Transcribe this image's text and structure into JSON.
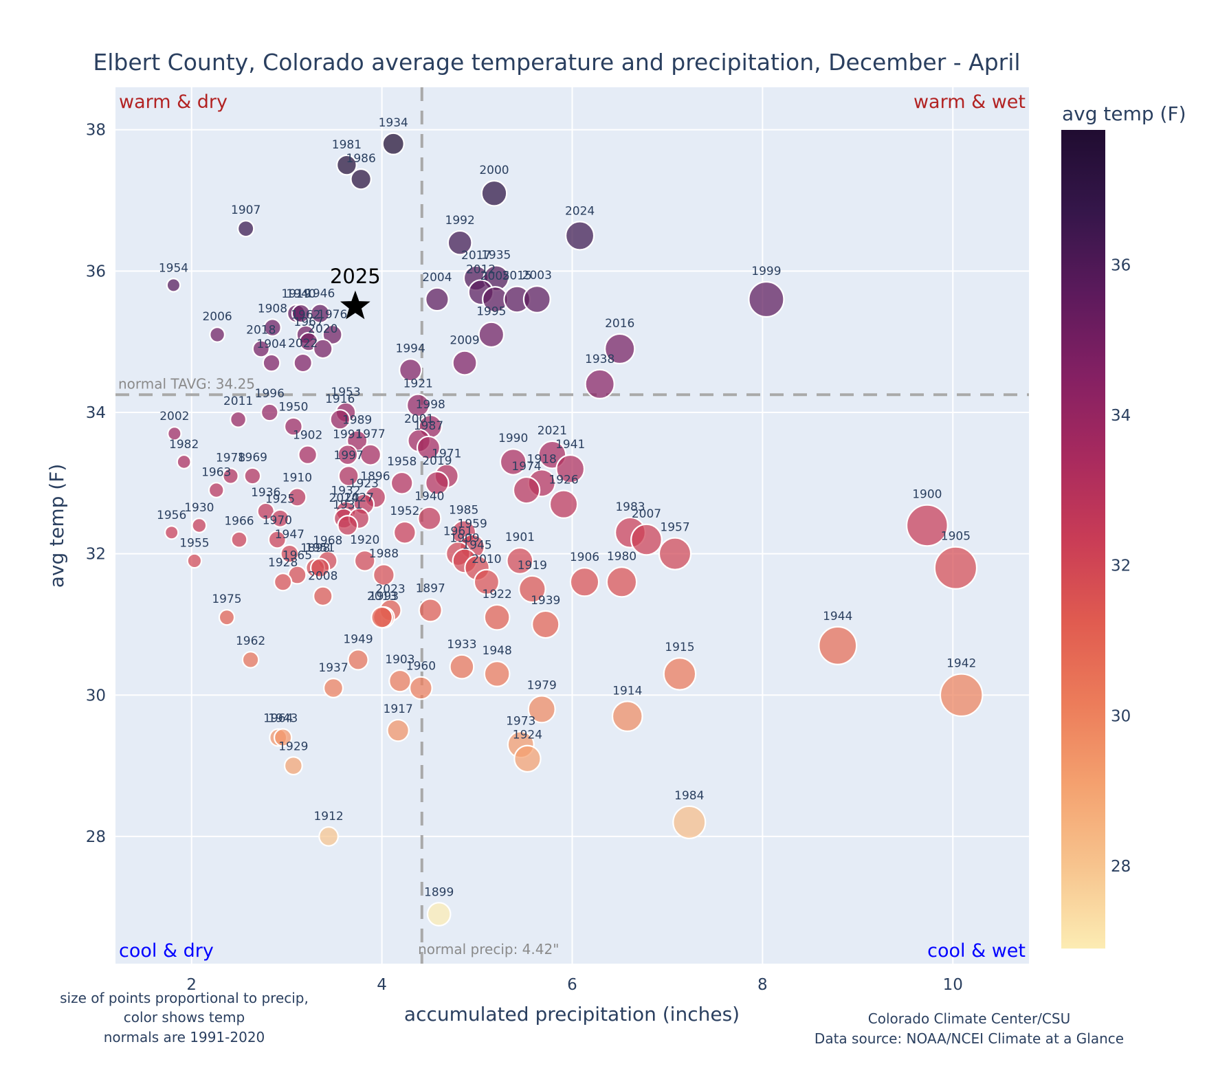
{
  "chart_data": {
    "type": "scatter",
    "title": "Elbert County, Colorado average temperature and precipitation, December - April",
    "xlabel": "accumulated precipitation (inches)",
    "ylabel": "avg temp (F)",
    "xlim": [
      1.2,
      10.8
    ],
    "ylim": [
      26.2,
      38.6
    ],
    "xticks": [
      2,
      4,
      6,
      8,
      10
    ],
    "yticks": [
      28,
      30,
      32,
      34,
      36,
      38
    ],
    "grid": true,
    "colorbar": {
      "title": "avg temp (F)",
      "range": [
        26.9,
        37.8
      ],
      "ticks": [
        28,
        30,
        32,
        34,
        36
      ],
      "colorscale": [
        "#fcecb3",
        "#f7c48e",
        "#f4a16f",
        "#ec7c5a",
        "#e05b50",
        "#c93c56",
        "#a82a5e",
        "#842063",
        "#5c1a5c",
        "#35164a",
        "#200c31"
      ]
    },
    "normals": {
      "precip": 4.42,
      "precip_label": "normal precip: 4.42\"",
      "tavg": 34.25,
      "tavg_label": "normal TAVG: 34.25"
    },
    "quadrants": {
      "warm_dry": "warm & dry",
      "warm_wet": "warm & wet",
      "cool_dry": "cool & dry",
      "cool_wet": "cool & wet"
    },
    "highlight": {
      "year": "2025",
      "precip": 3.72,
      "temp": 35.5
    },
    "points": [
      {
        "year": "1934",
        "precip": 4.12,
        "temp": 37.8
      },
      {
        "year": "1981",
        "precip": 3.63,
        "temp": 37.5
      },
      {
        "year": "1986",
        "precip": 3.78,
        "temp": 37.3
      },
      {
        "year": "2000",
        "precip": 5.18,
        "temp": 37.1
      },
      {
        "year": "1907",
        "precip": 2.57,
        "temp": 36.6
      },
      {
        "year": "2024",
        "precip": 6.08,
        "temp": 36.5
      },
      {
        "year": "1992",
        "precip": 4.82,
        "temp": 36.4
      },
      {
        "year": "1954",
        "precip": 1.81,
        "temp": 35.8
      },
      {
        "year": "2017",
        "precip": 4.99,
        "temp": 35.9
      },
      {
        "year": "1935",
        "precip": 5.2,
        "temp": 35.9
      },
      {
        "year": "2012",
        "precip": 5.04,
        "temp": 35.7
      },
      {
        "year": "2005",
        "precip": 5.19,
        "temp": 35.6
      },
      {
        "year": "2015",
        "precip": 5.42,
        "temp": 35.6
      },
      {
        "year": "2003",
        "precip": 5.63,
        "temp": 35.6
      },
      {
        "year": "2004",
        "precip": 4.58,
        "temp": 35.6
      },
      {
        "year": "1999",
        "precip": 8.04,
        "temp": 35.6
      },
      {
        "year": "1919",
        "precip": 3.1,
        "temp": 35.4
      },
      {
        "year": "1940",
        "precip": 3.15,
        "temp": 35.4
      },
      {
        "year": "1946",
        "precip": 3.35,
        "temp": 35.4
      },
      {
        "year": "1908",
        "precip": 2.85,
        "temp": 35.2
      },
      {
        "year": "1962",
        "precip": 3.2,
        "temp": 35.1
      },
      {
        "year": "1967",
        "precip": 3.23,
        "temp": 35.0
      },
      {
        "year": "1976",
        "precip": 3.48,
        "temp": 35.1
      },
      {
        "year": "2006",
        "precip": 2.27,
        "temp": 35.1
      },
      {
        "year": "1995",
        "precip": 5.15,
        "temp": 35.1
      },
      {
        "year": "2018",
        "precip": 2.73,
        "temp": 34.9
      },
      {
        "year": "2020",
        "precip": 3.38,
        "temp": 34.9
      },
      {
        "year": "2016",
        "precip": 6.5,
        "temp": 34.9
      },
      {
        "year": "1904",
        "precip": 2.84,
        "temp": 34.7
      },
      {
        "year": "2022",
        "precip": 3.17,
        "temp": 34.7
      },
      {
        "year": "2009",
        "precip": 4.87,
        "temp": 34.7
      },
      {
        "year": "1994",
        "precip": 4.3,
        "temp": 34.6
      },
      {
        "year": "1938",
        "precip": 6.29,
        "temp": 34.4
      },
      {
        "year": "1921",
        "precip": 4.38,
        "temp": 34.1
      },
      {
        "year": "1996",
        "precip": 2.82,
        "temp": 34.0
      },
      {
        "year": "1953",
        "precip": 3.62,
        "temp": 34.0
      },
      {
        "year": "1916",
        "precip": 3.56,
        "temp": 33.9
      },
      {
        "year": "2011",
        "precip": 2.49,
        "temp": 33.9
      },
      {
        "year": "1998",
        "precip": 4.51,
        "temp": 33.8
      },
      {
        "year": "1950",
        "precip": 3.07,
        "temp": 33.8
      },
      {
        "year": "2002",
        "precip": 1.82,
        "temp": 33.7
      },
      {
        "year": "1989",
        "precip": 3.74,
        "temp": 33.6
      },
      {
        "year": "2001",
        "precip": 4.39,
        "temp": 33.6
      },
      {
        "year": "1987",
        "precip": 4.49,
        "temp": 33.5
      },
      {
        "year": "1902",
        "precip": 3.22,
        "temp": 33.4
      },
      {
        "year": "1991",
        "precip": 3.64,
        "temp": 33.4
      },
      {
        "year": "1977",
        "precip": 3.88,
        "temp": 33.4
      },
      {
        "year": "2021",
        "precip": 5.79,
        "temp": 33.4
      },
      {
        "year": "1990",
        "precip": 5.38,
        "temp": 33.3
      },
      {
        "year": "1982",
        "precip": 1.92,
        "temp": 33.3
      },
      {
        "year": "1941",
        "precip": 5.98,
        "temp": 33.2
      },
      {
        "year": "1918",
        "precip": 5.68,
        "temp": 33.0
      },
      {
        "year": "1971",
        "precip": 4.68,
        "temp": 33.1
      },
      {
        "year": "1978",
        "precip": 2.41,
        "temp": 33.1
      },
      {
        "year": "1969",
        "precip": 2.64,
        "temp": 33.1
      },
      {
        "year": "1997",
        "precip": 3.65,
        "temp": 33.1
      },
      {
        "year": "2019",
        "precip": 4.58,
        "temp": 33.0
      },
      {
        "year": "1958",
        "precip": 4.21,
        "temp": 33.0
      },
      {
        "year": "1963",
        "precip": 2.26,
        "temp": 32.9
      },
      {
        "year": "1974",
        "precip": 5.52,
        "temp": 32.9
      },
      {
        "year": "1896",
        "precip": 3.93,
        "temp": 32.8
      },
      {
        "year": "1910",
        "precip": 3.11,
        "temp": 32.8
      },
      {
        "year": "1923",
        "precip": 3.81,
        "temp": 32.7
      },
      {
        "year": "1926",
        "precip": 5.91,
        "temp": 32.7
      },
      {
        "year": "1932",
        "precip": 3.62,
        "temp": 32.6
      },
      {
        "year": "2014",
        "precip": 3.6,
        "temp": 32.5
      },
      {
        "year": "2027",
        "precip": 3.76,
        "temp": 32.5
      },
      {
        "year": "1936",
        "precip": 2.78,
        "temp": 32.6
      },
      {
        "year": "1940b",
        "precip": 4.5,
        "temp": 32.5
      },
      {
        "year": "1925",
        "precip": 2.93,
        "temp": 32.5
      },
      {
        "year": "1930",
        "precip": 2.08,
        "temp": 32.4
      },
      {
        "year": "1931",
        "precip": 3.64,
        "temp": 32.4
      },
      {
        "year": "1985",
        "precip": 4.86,
        "temp": 32.3
      },
      {
        "year": "1952",
        "precip": 4.24,
        "temp": 32.3
      },
      {
        "year": "1983",
        "precip": 6.61,
        "temp": 32.3
      },
      {
        "year": "1956",
        "precip": 1.79,
        "temp": 32.3
      },
      {
        "year": "2007",
        "precip": 6.78,
        "temp": 32.2
      },
      {
        "year": "1966",
        "precip": 2.5,
        "temp": 32.2
      },
      {
        "year": "1970",
        "precip": 2.9,
        "temp": 32.2
      },
      {
        "year": "1959",
        "precip": 4.95,
        "temp": 32.1
      },
      {
        "year": "1900",
        "precip": 9.73,
        "temp": 32.4
      },
      {
        "year": "1961",
        "precip": 4.8,
        "temp": 32.0
      },
      {
        "year": "1957",
        "precip": 7.08,
        "temp": 32.0
      },
      {
        "year": "1909",
        "precip": 4.87,
        "temp": 31.9
      },
      {
        "year": "1947",
        "precip": 3.03,
        "temp": 32.0
      },
      {
        "year": "1945",
        "precip": 5.0,
        "temp": 31.8
      },
      {
        "year": "1901",
        "precip": 5.45,
        "temp": 31.9
      },
      {
        "year": "1968",
        "precip": 3.43,
        "temp": 31.9
      },
      {
        "year": "1920",
        "precip": 3.82,
        "temp": 31.9
      },
      {
        "year": "1898",
        "precip": 3.3,
        "temp": 31.8
      },
      {
        "year": "1951",
        "precip": 3.35,
        "temp": 31.8
      },
      {
        "year": "1955",
        "precip": 2.03,
        "temp": 31.9
      },
      {
        "year": "1905",
        "precip": 10.03,
        "temp": 31.8
      },
      {
        "year": "1965",
        "precip": 3.11,
        "temp": 31.7
      },
      {
        "year": "1988",
        "precip": 4.02,
        "temp": 31.7
      },
      {
        "year": "2010",
        "precip": 5.1,
        "temp": 31.6
      },
      {
        "year": "1928",
        "precip": 2.96,
        "temp": 31.6
      },
      {
        "year": "1906",
        "precip": 6.13,
        "temp": 31.6
      },
      {
        "year": "1980",
        "precip": 6.52,
        "temp": 31.6
      },
      {
        "year": "1919b",
        "precip": 5.58,
        "temp": 31.5
      },
      {
        "year": "2008",
        "precip": 3.38,
        "temp": 31.4
      },
      {
        "year": "2023",
        "precip": 4.09,
        "temp": 31.2
      },
      {
        "year": "1897",
        "precip": 4.51,
        "temp": 31.2
      },
      {
        "year": "1993",
        "precip": 4.02,
        "temp": 31.1
      },
      {
        "year": "2013",
        "precip": 4.0,
        "temp": 31.1
      },
      {
        "year": "1922",
        "precip": 5.21,
        "temp": 31.1
      },
      {
        "year": "1975",
        "precip": 2.37,
        "temp": 31.1
      },
      {
        "year": "1939",
        "precip": 5.72,
        "temp": 31.0
      },
      {
        "year": "1944",
        "precip": 8.79,
        "temp": 30.7
      },
      {
        "year": "1962b",
        "precip": 2.62,
        "temp": 30.5
      },
      {
        "year": "1949",
        "precip": 3.75,
        "temp": 30.5
      },
      {
        "year": "1933",
        "precip": 4.84,
        "temp": 30.4
      },
      {
        "year": "1948",
        "precip": 5.21,
        "temp": 30.3
      },
      {
        "year": "1915",
        "precip": 7.13,
        "temp": 30.3
      },
      {
        "year": "1903",
        "precip": 4.19,
        "temp": 30.2
      },
      {
        "year": "1937",
        "precip": 3.49,
        "temp": 30.1
      },
      {
        "year": "1960",
        "precip": 4.41,
        "temp": 30.1
      },
      {
        "year": "1942",
        "precip": 10.09,
        "temp": 30.0
      },
      {
        "year": "1979",
        "precip": 5.68,
        "temp": 29.8
      },
      {
        "year": "1914",
        "precip": 6.58,
        "temp": 29.7
      },
      {
        "year": "1917",
        "precip": 4.17,
        "temp": 29.5
      },
      {
        "year": "1964",
        "precip": 2.91,
        "temp": 29.4
      },
      {
        "year": "1943",
        "precip": 2.96,
        "temp": 29.4
      },
      {
        "year": "1973",
        "precip": 5.46,
        "temp": 29.3
      },
      {
        "year": "1924",
        "precip": 5.53,
        "temp": 29.1
      },
      {
        "year": "1929",
        "precip": 3.07,
        "temp": 29.0
      },
      {
        "year": "1984",
        "precip": 7.23,
        "temp": 28.2
      },
      {
        "year": "1912",
        "precip": 3.44,
        "temp": 28.0
      },
      {
        "year": "1899",
        "precip": 4.6,
        "temp": 26.9
      }
    ]
  },
  "notes": {
    "left_line1": "size of points proportional to precip,",
    "left_line2": "color shows temp",
    "left_line3": "normals are 1991-2020",
    "right_line1": "Colorado Climate Center/CSU",
    "right_line2": "Data source: NOAA/NCEI Climate at a Glance"
  },
  "colors": {
    "plot_bg": "#e5ecf6",
    "grid": "#ffffff",
    "text": "#2a3f5f",
    "warm_label": "#b22222",
    "cool_label": "#0000ff",
    "normal_line": "#a9a9a9"
  }
}
